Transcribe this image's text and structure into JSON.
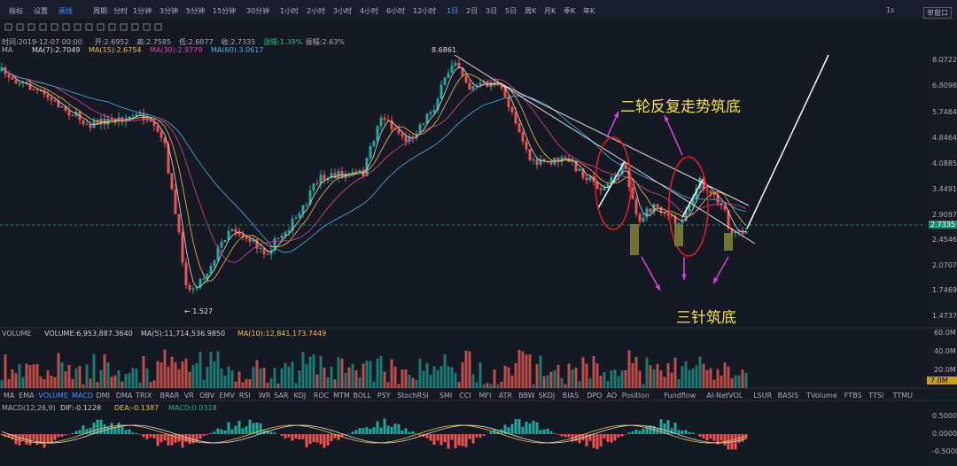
{
  "toolbar": {
    "left": [
      "指标",
      "设置",
      "画线"
    ],
    "periods_label": "周期",
    "periods": [
      "分时",
      "1分钟",
      "3分钟",
      "5分钟",
      "15分钟",
      "30分钟",
      "1小时",
      "2小时",
      "3小时",
      "4小时",
      "6小时",
      "12小时",
      "1日",
      "2日",
      "3日",
      "5日",
      "周K",
      "月K",
      "季K",
      "年K"
    ],
    "right": [
      "1s",
      "单窗口"
    ]
  },
  "info": [
    "时间:2019-12-07 00:00",
    "开:2.6952",
    "高:2.7585",
    "低:2.6877",
    "收:2.7335",
    "涨幅:1.39%",
    "振幅:2.63%"
  ],
  "ma": {
    "name": "MA",
    "items": [
      "MA(7):2.7049",
      "MA(15):2.6754",
      "MA(30):2.9779",
      "MA(60):3.0617"
    ]
  },
  "price_axis": [
    "8.0722",
    "6.8098",
    "5.7484",
    "4.8464",
    "4.0885",
    "3.4491",
    "2.9097",
    "2.7335",
    "2.4546",
    "2.0707",
    "1.7469",
    "1.4737"
  ],
  "annotations": {
    "high": "8.6861",
    "low": "← 1.527",
    "top_note": "二轮反复走势筑底",
    "bottom_note": "三针筑底"
  },
  "volume": {
    "name": "VOLUME",
    "items": [
      "VOLUME:6,953,887.3640",
      "MA(5):11,714,536.9850",
      "MA(10):12,841,173.7449"
    ],
    "axis": [
      "60.0M",
      "40.0M",
      "20.0M",
      "7.0M"
    ]
  },
  "tabs": [
    "MA",
    "EMA",
    "VOLUME",
    "MACD",
    "DMI",
    "DMA",
    "TRIX",
    "BRAR",
    "VR",
    "OBV",
    "EMV",
    "RSI",
    "WR",
    "SAR",
    "KDJ",
    "ROC",
    "MTM",
    "BOLL",
    "PSY",
    "StochRSI",
    "SMI",
    "CCI",
    "MFI",
    "ATR",
    "BBW",
    "SKDJ",
    "BIAS",
    "DPO",
    "AO",
    "Position",
    "Fundflow",
    "AI-NetVOL",
    "LSUR",
    "BASIS",
    "TVolume",
    "FTBS",
    "TTSI",
    "TTMU"
  ],
  "macd": {
    "name": "MACD(12,26,9)",
    "items": [
      "DIF:-0.1228",
      "DEA:-0.1387",
      "MACD:0.0318"
    ],
    "axis": [
      "0.5000",
      "0.0000",
      "-0.5000"
    ]
  }
}
